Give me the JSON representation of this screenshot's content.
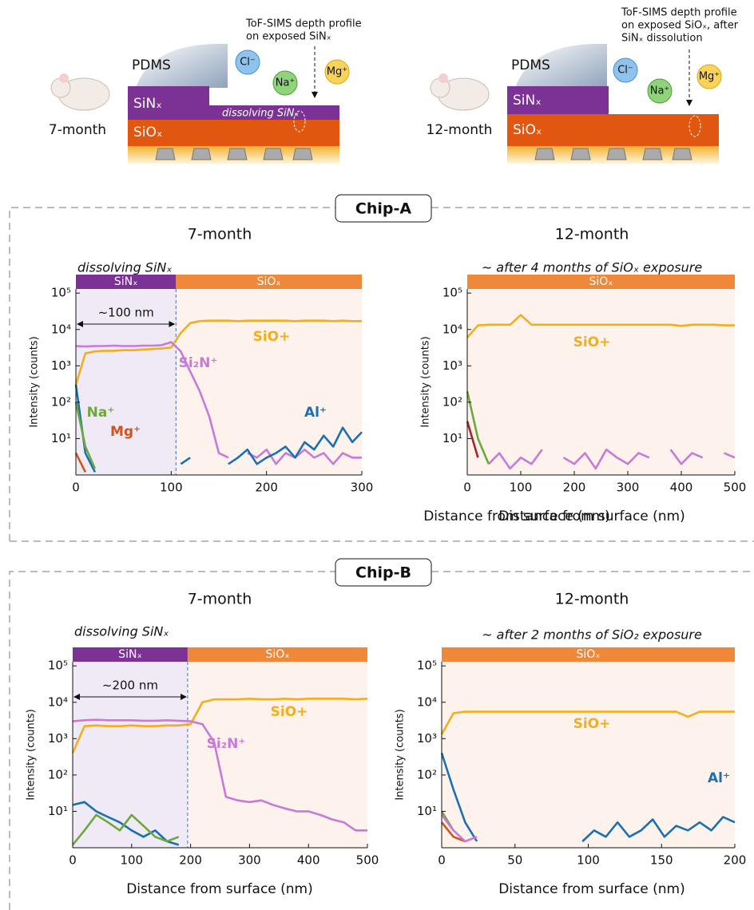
{
  "schematics": [
    {
      "age": "7-month",
      "pdms": "PDMS",
      "top_layer": "SiNₓ",
      "base_layer": "SiOₓ",
      "note": "dissolving SiNₓ",
      "ions": [
        "Cl⁻",
        "Na⁺",
        "Mg⁺"
      ],
      "probe": [
        "ToF-SIMS depth profile",
        "on exposed SiNₓ"
      ]
    },
    {
      "age": "12-month",
      "pdms": "PDMS",
      "top_layer": "SiNₓ",
      "base_layer": "SiOₓ",
      "ions": [
        "Cl⁻",
        "Na⁺",
        "Mg⁺"
      ],
      "probe": [
        "ToF-SIMS depth profile",
        "on exposed SiOₓ, after",
        "SiNₓ dissolution"
      ]
    }
  ],
  "groups": [
    "Chip-A",
    "Chip-B"
  ],
  "chart_data": [
    {
      "type": "line",
      "title": "7-month",
      "subtitle": "dissolving SiNₓ",
      "xlabel": "Distance from surface (nm)",
      "ylabel": "Intensity (counts)",
      "log_y": true,
      "xlim": [
        0,
        300
      ],
      "xticks": [
        0,
        100,
        200,
        300
      ],
      "ylim": [
        1,
        130000
      ],
      "yticks": [
        {
          "value": 10,
          "label": "10¹"
        },
        {
          "value": 100,
          "label": "10²"
        },
        {
          "value": 1000,
          "label": "10³"
        },
        {
          "value": 10000,
          "label": "10⁴"
        },
        {
          "value": 100000,
          "label": "10⁵"
        }
      ],
      "regions": [
        {
          "label": "SiNₓ",
          "start": 0,
          "end": 105,
          "color": "#7b3294",
          "shade": "#efeaf6"
        },
        {
          "label": "SiOₓ",
          "start": 105,
          "end": 300,
          "color": "#f0883a",
          "shade": "#fdf3ec"
        }
      ],
      "span": {
        "label": "~100 nm",
        "start": 0,
        "end": 105
      },
      "x": [
        0,
        10,
        20,
        30,
        40,
        50,
        60,
        70,
        80,
        90,
        100,
        110,
        120,
        130,
        140,
        150,
        160,
        170,
        180,
        190,
        200,
        210,
        220,
        230,
        240,
        250,
        260,
        270,
        280,
        290,
        300
      ],
      "series": [
        {
          "name": "SiO+",
          "color": "#f2ae1c",
          "values": [
            300,
            2200,
            2500,
            2600,
            2600,
            2700,
            2700,
            2800,
            2900,
            3000,
            3200,
            8000,
            15000,
            17000,
            17500,
            17500,
            17500,
            17000,
            17500,
            17500,
            17500,
            17500,
            17500,
            17000,
            17500,
            17500,
            17500,
            17000,
            17500,
            17000,
            17000
          ]
        },
        {
          "name": "Si₂N⁺",
          "color": "#c77ad6",
          "values": [
            3500,
            3400,
            3500,
            3500,
            3600,
            3500,
            3500,
            3600,
            3600,
            3700,
            4500,
            2500,
            700,
            200,
            40,
            4,
            3,
            null,
            4,
            3,
            5,
            2,
            4,
            3,
            5,
            3,
            4,
            2,
            4,
            3,
            3
          ]
        },
        {
          "name": "Al⁺",
          "color": "#1b6fb3",
          "values": [
            300,
            4,
            1.2,
            null,
            null,
            null,
            null,
            null,
            null,
            null,
            null,
            2,
            3,
            null,
            1.5,
            null,
            2,
            3,
            5,
            2,
            3,
            4,
            6,
            3,
            8,
            5,
            12,
            6,
            20,
            8,
            15
          ]
        },
        {
          "name": "Na⁺",
          "color": "#6da83a",
          "values": [
            100,
            6,
            1.5,
            null,
            null,
            null,
            null,
            null,
            null,
            null,
            null,
            null,
            null,
            null,
            null,
            null,
            null,
            null,
            null,
            null,
            null,
            null,
            null,
            null,
            null,
            null,
            null,
            null,
            null,
            null,
            null
          ]
        },
        {
          "name": "Mg⁺",
          "color": "#d0541c",
          "values": [
            4,
            1.2,
            null,
            null,
            null,
            null,
            null,
            null,
            null,
            null,
            null,
            null,
            null,
            null,
            null,
            null,
            null,
            null,
            null,
            null,
            null,
            null,
            null,
            null,
            null,
            null,
            null,
            null,
            null,
            null,
            null
          ]
        }
      ]
    },
    {
      "type": "line",
      "title": "12-month",
      "subtitle": "~ after 4 months of SiOₓ exposure",
      "xlabel": "Distance from surface (nm)",
      "ylabel": "Intensity (counts)",
      "log_y": true,
      "xlim": [
        0,
        500
      ],
      "xticks": [
        0,
        100,
        200,
        300,
        400,
        500
      ],
      "ylim": [
        1,
        130000
      ],
      "yticks": [
        {
          "value": 10,
          "label": "10¹"
        },
        {
          "value": 100,
          "label": "10²"
        },
        {
          "value": 1000,
          "label": "10³"
        },
        {
          "value": 10000,
          "label": "10⁴"
        },
        {
          "value": 100000,
          "label": "10⁵"
        }
      ],
      "regions": [
        {
          "label": "SiOₓ",
          "start": 0,
          "end": 500,
          "color": "#f0883a",
          "shade": "#fdf3ec"
        }
      ],
      "x": [
        0,
        20,
        40,
        60,
        80,
        100,
        120,
        140,
        160,
        180,
        200,
        220,
        240,
        260,
        280,
        300,
        320,
        340,
        360,
        380,
        400,
        420,
        440,
        460,
        480,
        500
      ],
      "series": [
        {
          "name": "SiO+",
          "color": "#f2ae1c",
          "values": [
            6000,
            13000,
            13500,
            13500,
            13500,
            25000,
            13500,
            13500,
            13500,
            13500,
            13500,
            13500,
            13500,
            13500,
            13500,
            13500,
            13500,
            13500,
            13500,
            13500,
            12500,
            13500,
            13500,
            13500,
            13000,
            13000
          ]
        },
        {
          "color": "#c77ad6",
          "values": [
            null,
            null,
            2,
            4,
            1.5,
            3,
            2,
            5,
            null,
            3,
            2,
            4,
            1.5,
            5,
            3,
            2,
            4,
            3,
            null,
            5,
            2,
            4,
            3,
            null,
            4,
            3
          ]
        },
        {
          "color": "#6da83a",
          "values": [
            200,
            10,
            2,
            null,
            null,
            null,
            null,
            null,
            null,
            null,
            null,
            null,
            null,
            null,
            null,
            null,
            null,
            null,
            null,
            null,
            null,
            null,
            null,
            null,
            null,
            null
          ]
        },
        {
          "color": "#a8232b",
          "values": [
            30,
            3,
            null,
            null,
            null,
            null,
            null,
            null,
            null,
            null,
            null,
            null,
            null,
            null,
            null,
            null,
            null,
            null,
            null,
            null,
            null,
            null,
            null,
            null,
            null,
            null
          ]
        }
      ]
    },
    {
      "type": "line",
      "title": "7-month",
      "subtitle": "dissolving SiNₓ",
      "xlabel": "Distance from surface (nm)",
      "ylabel": "Intensity (counts)",
      "log_y": true,
      "xlim": [
        0,
        500
      ],
      "xticks": [
        0,
        100,
        200,
        300,
        400,
        500
      ],
      "ylim": [
        1,
        130000
      ],
      "yticks": [
        {
          "value": 10,
          "label": "10¹"
        },
        {
          "value": 100,
          "label": "10²"
        },
        {
          "value": 1000,
          "label": "10³"
        },
        {
          "value": 10000,
          "label": "10⁴"
        },
        {
          "value": 100000,
          "label": "10⁵"
        }
      ],
      "regions": [
        {
          "label": "SiNₓ",
          "start": 0,
          "end": 195,
          "color": "#7b3294",
          "shade": "#efeaf6"
        },
        {
          "label": "SiOₓ",
          "start": 195,
          "end": 500,
          "color": "#f0883a",
          "shade": "#fdf3ec"
        }
      ],
      "span": {
        "label": "~200 nm",
        "start": 0,
        "end": 195
      },
      "x": [
        0,
        20,
        40,
        60,
        80,
        100,
        120,
        140,
        160,
        180,
        200,
        220,
        240,
        260,
        280,
        300,
        320,
        340,
        360,
        380,
        400,
        420,
        440,
        460,
        480,
        500
      ],
      "series": [
        {
          "name": "SiO+",
          "color": "#f2ae1c",
          "values": [
            400,
            2200,
            2300,
            2200,
            2200,
            2300,
            2200,
            2200,
            2300,
            2300,
            2500,
            10000,
            12000,
            12000,
            12000,
            12500,
            12000,
            12000,
            12500,
            12000,
            12500,
            12500,
            12500,
            12500,
            12000,
            12500
          ]
        },
        {
          "name": "Si₂N⁺",
          "color": "#c77ad6",
          "values": [
            3000,
            3200,
            3300,
            3200,
            3200,
            3200,
            3100,
            3100,
            3200,
            3100,
            3000,
            2500,
            800,
            25,
            20,
            18,
            20,
            15,
            12,
            10,
            10,
            8,
            6,
            5,
            3,
            3
          ]
        },
        {
          "color": "#1b6fb3",
          "values": [
            15,
            18,
            10,
            7,
            5,
            3,
            2,
            3,
            1.5,
            1.2,
            null,
            null,
            null,
            null,
            null,
            null,
            null,
            null,
            null,
            null,
            null,
            null,
            null,
            null,
            null,
            null
          ]
        },
        {
          "color": "#6da83a",
          "values": [
            1.2,
            3,
            8,
            5,
            3,
            8,
            4,
            2,
            1.5,
            2,
            null,
            null,
            null,
            null,
            null,
            null,
            null,
            null,
            null,
            null,
            null,
            null,
            null,
            null,
            null,
            null
          ]
        }
      ]
    },
    {
      "type": "line",
      "title": "12-month",
      "subtitle": "~ after 2 months of SiO₂ exposure",
      "xlabel": "Distance from surface (nm)",
      "ylabel": "Intensity (counts)",
      "log_y": true,
      "xlim": [
        0,
        200
      ],
      "xticks": [
        0,
        50,
        100,
        150,
        200
      ],
      "ylim": [
        1,
        130000
      ],
      "yticks": [
        {
          "value": 10,
          "label": "10¹"
        },
        {
          "value": 100,
          "label": "10²"
        },
        {
          "value": 1000,
          "label": "10³"
        },
        {
          "value": 10000,
          "label": "10⁴"
        },
        {
          "value": 100000,
          "label": "10⁵"
        }
      ],
      "regions": [
        {
          "label": "SiOₓ",
          "start": 0,
          "end": 200,
          "color": "#f0883a",
          "shade": "#fdf3ec"
        }
      ],
      "x": [
        0,
        8,
        16,
        24,
        32,
        40,
        48,
        56,
        64,
        72,
        80,
        88,
        96,
        104,
        112,
        120,
        128,
        136,
        144,
        152,
        160,
        168,
        176,
        184,
        192,
        200
      ],
      "series": [
        {
          "name": "SiO+",
          "color": "#f2ae1c",
          "values": [
            1300,
            5000,
            5500,
            5500,
            5500,
            5500,
            5500,
            5500,
            5500,
            5500,
            5500,
            5500,
            5500,
            5500,
            5500,
            5500,
            5500,
            5500,
            5500,
            5500,
            5500,
            4000,
            5500,
            5500,
            5500,
            5500
          ]
        },
        {
          "name": "Al⁺",
          "color": "#1b6fb3",
          "values": [
            400,
            40,
            5,
            1.5,
            null,
            null,
            null,
            null,
            null,
            2,
            null,
            null,
            1.5,
            3,
            2,
            5,
            2,
            3,
            6,
            2,
            4,
            3,
            5,
            3,
            7,
            5
          ]
        },
        {
          "color": "#6da83a",
          "values": [
            10,
            3,
            null,
            null,
            null,
            null,
            null,
            null,
            null,
            null,
            null,
            null,
            null,
            null,
            null,
            null,
            null,
            null,
            null,
            null,
            null,
            null,
            2,
            null,
            null,
            null
          ]
        },
        {
          "color": "#d0541c",
          "values": [
            5,
            2,
            1.5,
            null,
            null,
            null,
            null,
            null,
            null,
            null,
            null,
            null,
            null,
            null,
            null,
            null,
            null,
            null,
            null,
            null,
            null,
            null,
            null,
            null,
            null,
            null
          ]
        },
        {
          "color": "#c77ad6",
          "values": [
            8,
            3,
            1.5,
            2,
            null,
            null,
            null,
            null,
            null,
            null,
            null,
            null,
            null,
            null,
            null,
            null,
            null,
            null,
            null,
            null,
            null,
            null,
            null,
            null,
            null,
            null
          ]
        }
      ]
    }
  ]
}
